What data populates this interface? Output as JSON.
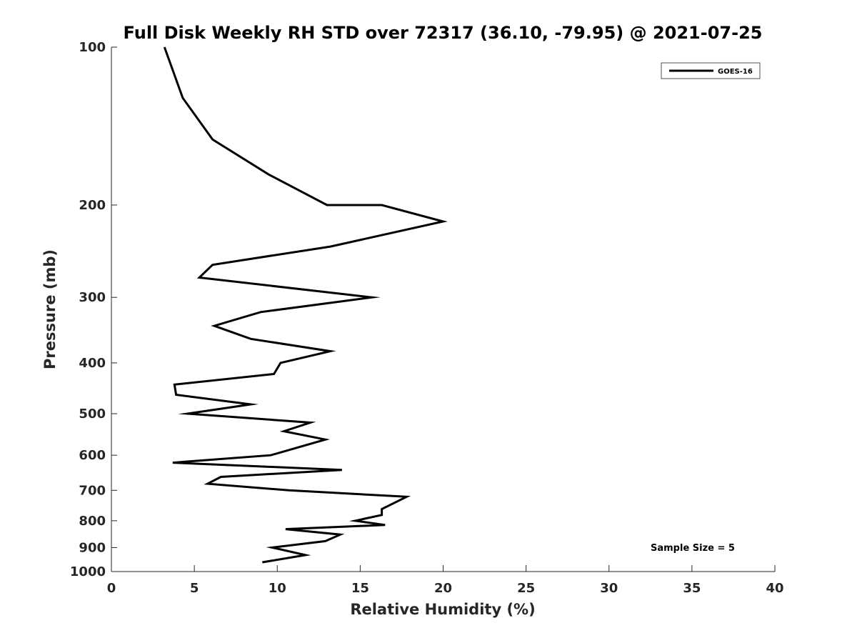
{
  "chart_data": {
    "type": "line",
    "title": "Full Disk Weekly RH STD over 72317 (36.10, -79.95) @ 2021-07-25",
    "xlabel": "Relative Humidity (%)",
    "ylabel": "Pressure (mb)",
    "xlim": [
      0,
      40
    ],
    "ylim": [
      100,
      1000
    ],
    "y_scale": "log",
    "y_reversed": true,
    "grid": false,
    "legend_position": "top-right",
    "x_ticks": [
      "0",
      "5",
      "10",
      "15",
      "20",
      "25",
      "30",
      "35",
      "40"
    ],
    "y_ticks": [
      "100",
      "200",
      "300",
      "400",
      "500",
      "600",
      "700",
      "800",
      "900",
      "1000"
    ],
    "annotation": "Sample Size = 5",
    "series": [
      {
        "name": "GOES-16",
        "color": "#000000",
        "points": [
          [
            3.2,
            100
          ],
          [
            4.3,
            125
          ],
          [
            6.1,
            150
          ],
          [
            9.5,
            175
          ],
          [
            13.0,
            200
          ],
          [
            16.3,
            200
          ],
          [
            20.0,
            215
          ],
          [
            13.2,
            240
          ],
          [
            6.1,
            260
          ],
          [
            5.3,
            275
          ],
          [
            15.7,
            300
          ],
          [
            9.0,
            320
          ],
          [
            6.2,
            340
          ],
          [
            8.4,
            360
          ],
          [
            13.2,
            380
          ],
          [
            10.2,
            400
          ],
          [
            9.8,
            420
          ],
          [
            3.8,
            440
          ],
          [
            3.9,
            460
          ],
          [
            8.4,
            480
          ],
          [
            4.6,
            500
          ],
          [
            12.0,
            520
          ],
          [
            10.4,
            540
          ],
          [
            12.9,
            560
          ],
          [
            9.6,
            600
          ],
          [
            3.7,
            620
          ],
          [
            13.9,
            640
          ],
          [
            6.6,
            660
          ],
          [
            5.8,
            680
          ],
          [
            10.7,
            700
          ],
          [
            17.8,
            720
          ],
          [
            16.3,
            760
          ],
          [
            16.3,
            780
          ],
          [
            14.7,
            800
          ],
          [
            16.5,
            815
          ],
          [
            10.5,
            830
          ],
          [
            13.8,
            850
          ],
          [
            12.9,
            875
          ],
          [
            9.7,
            900
          ],
          [
            11.7,
            930
          ],
          [
            9.1,
            960
          ]
        ]
      }
    ]
  }
}
